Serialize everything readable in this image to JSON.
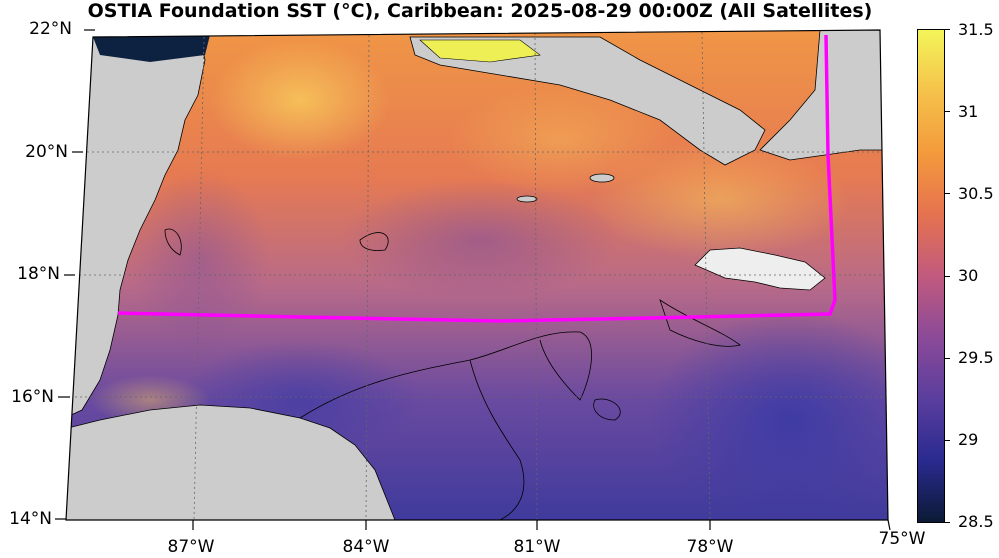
{
  "title": "OSTIA Foundation SST (°C), Caribbean: 2025-08-29 00:00Z (All Satellites)",
  "map": {
    "lat_labels": [
      "22°N",
      "20°N",
      "18°N",
      "16°N",
      "14°N"
    ],
    "lon_labels": [
      "87°W",
      "84°W",
      "81°W",
      "78°W",
      "75°W"
    ],
    "land_color": "#cccccc",
    "boundary_color": "#ff00ff",
    "coastline_color": "#000000"
  },
  "colorbar": {
    "ticks": [
      "31.5",
      "31",
      "30.5",
      "30",
      "29.5",
      "29",
      "28.5"
    ],
    "min": 28.5,
    "max": 31.5,
    "colors": [
      "#0b1a35",
      "#2a2a8f",
      "#5a3e9e",
      "#8b4a98",
      "#c15a7e",
      "#e5724f",
      "#f49a3c",
      "#f5c24a",
      "#f4f55a"
    ]
  }
}
